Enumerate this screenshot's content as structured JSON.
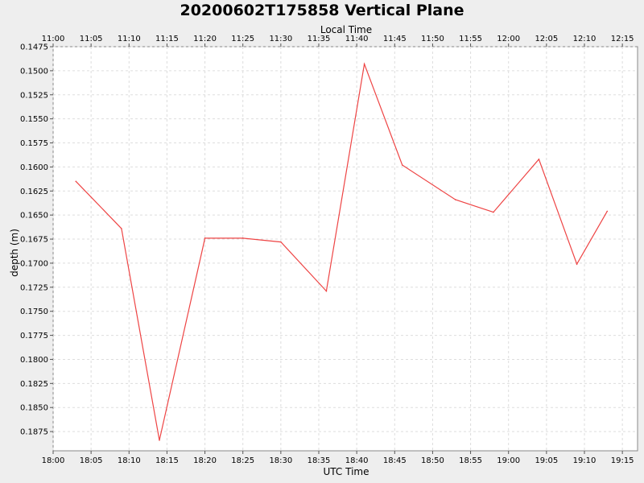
{
  "chart_data": {
    "type": "line",
    "title": "20200602T175858 Vertical Plane",
    "xlabel": "UTC Time",
    "x2label": "Local Time",
    "ylabel": "depth (m)",
    "y_inverted": true,
    "ylim": [
      0.1475,
      0.1895
    ],
    "xlim": [
      "18:00",
      "19:17"
    ],
    "x_ticks": [
      "18:00",
      "18:05",
      "18:10",
      "18:15",
      "18:20",
      "18:25",
      "18:30",
      "18:35",
      "18:40",
      "18:45",
      "18:50",
      "18:55",
      "19:00",
      "19:05",
      "19:10",
      "19:15"
    ],
    "x2_ticks": [
      "11:00",
      "11:05",
      "11:10",
      "11:15",
      "11:20",
      "11:25",
      "11:30",
      "11:35",
      "11:40",
      "11:45",
      "11:50",
      "11:55",
      "12:00",
      "12:05",
      "12:10",
      "12:15"
    ],
    "y_ticks": [
      "0.1475",
      "0.1500",
      "0.1525",
      "0.1550",
      "0.1575",
      "0.1600",
      "0.1625",
      "0.1650",
      "0.1675",
      "0.1700",
      "0.1725",
      "0.1750",
      "0.1775",
      "0.1800",
      "0.1825",
      "0.1850",
      "0.1875"
    ],
    "grid": true,
    "series": [
      {
        "color": "#ee4444",
        "x": [
          "18:03",
          "18:09",
          "18:14",
          "18:20",
          "18:25",
          "18:30",
          "18:36",
          "18:41",
          "18:46",
          "18:53",
          "18:58",
          "19:04",
          "19:09",
          "19:13"
        ],
        "y": [
          0.1615,
          0.1664,
          0.1884,
          0.1674,
          0.1674,
          0.1678,
          0.1729,
          0.1493,
          0.1598,
          0.1634,
          0.1647,
          0.1592,
          0.1701,
          0.1646
        ]
      }
    ]
  }
}
